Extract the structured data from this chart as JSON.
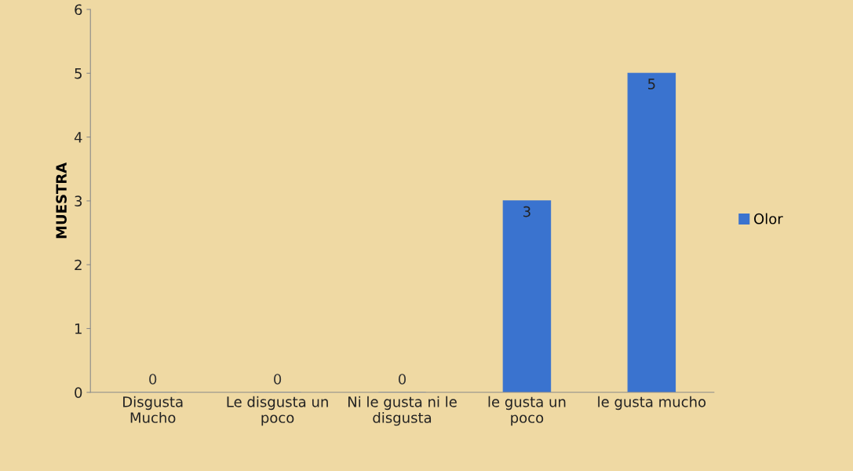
{
  "chart_data": {
    "type": "bar",
    "ylabel": "MUESTRA",
    "categories": [
      "Disgusta\nMucho",
      "Le disgusta un\npoco",
      "Ni le gusta ni le\ndisgusta",
      "le gusta un\npoco",
      "le gusta mucho"
    ],
    "series": [
      {
        "name": "Olor",
        "color": "#3a73cf",
        "values": [
          0,
          0,
          0,
          3,
          5
        ]
      }
    ],
    "ylim": [
      0,
      6
    ],
    "yticks": [
      0,
      1,
      2,
      3,
      4,
      5,
      6
    ],
    "grid": false,
    "legend": "right",
    "data_labels": true
  }
}
